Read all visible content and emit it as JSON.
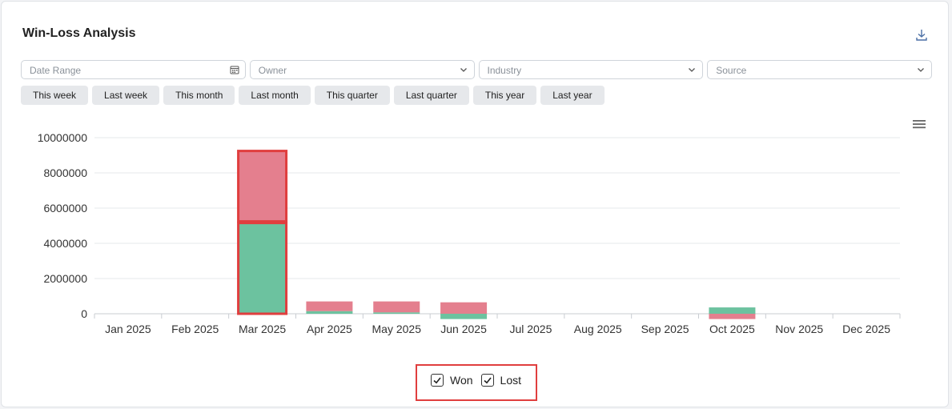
{
  "header": {
    "title": "Win-Loss Analysis",
    "download_icon": "download-icon"
  },
  "filters": [
    {
      "placeholder": "Date Range",
      "icon": "calendar-icon"
    },
    {
      "placeholder": "Owner",
      "icon": "chevron-down-icon"
    },
    {
      "placeholder": "Industry",
      "icon": "chevron-down-icon"
    },
    {
      "placeholder": "Source",
      "icon": "chevron-down-icon"
    }
  ],
  "presets": [
    "This week",
    "Last week",
    "This month",
    "Last month",
    "This quarter",
    "Last quarter",
    "This year",
    "Last year"
  ],
  "colors": {
    "won": "#6cc29f",
    "lost": "#e47f8e",
    "highlight": "#e03e3e"
  },
  "chart_data": {
    "type": "bar",
    "stacked": true,
    "categories": [
      "Jan 2025",
      "Feb 2025",
      "Mar 2025",
      "Apr 2025",
      "May 2025",
      "Jun 2025",
      "Jul 2025",
      "Aug 2025",
      "Sep 2025",
      "Oct 2025",
      "Nov 2025",
      "Dec 2025"
    ],
    "series": [
      {
        "name": "Won",
        "values": [
          0,
          0,
          5200000,
          150000,
          80000,
          -300000,
          0,
          0,
          0,
          360000,
          0,
          0
        ]
      },
      {
        "name": "Lost",
        "values": [
          0,
          0,
          4000000,
          550000,
          620000,
          650000,
          0,
          0,
          0,
          -300000,
          0,
          0
        ]
      }
    ],
    "yticks": [
      "10000000",
      "8000000",
      "6000000",
      "4000000",
      "2000000",
      "0"
    ],
    "ylim": [
      0,
      10000000
    ],
    "grid": true,
    "legend": "bottom"
  },
  "legend": {
    "won_label": "Won",
    "lost_label": "Lost",
    "won_checked": true,
    "lost_checked": true
  }
}
